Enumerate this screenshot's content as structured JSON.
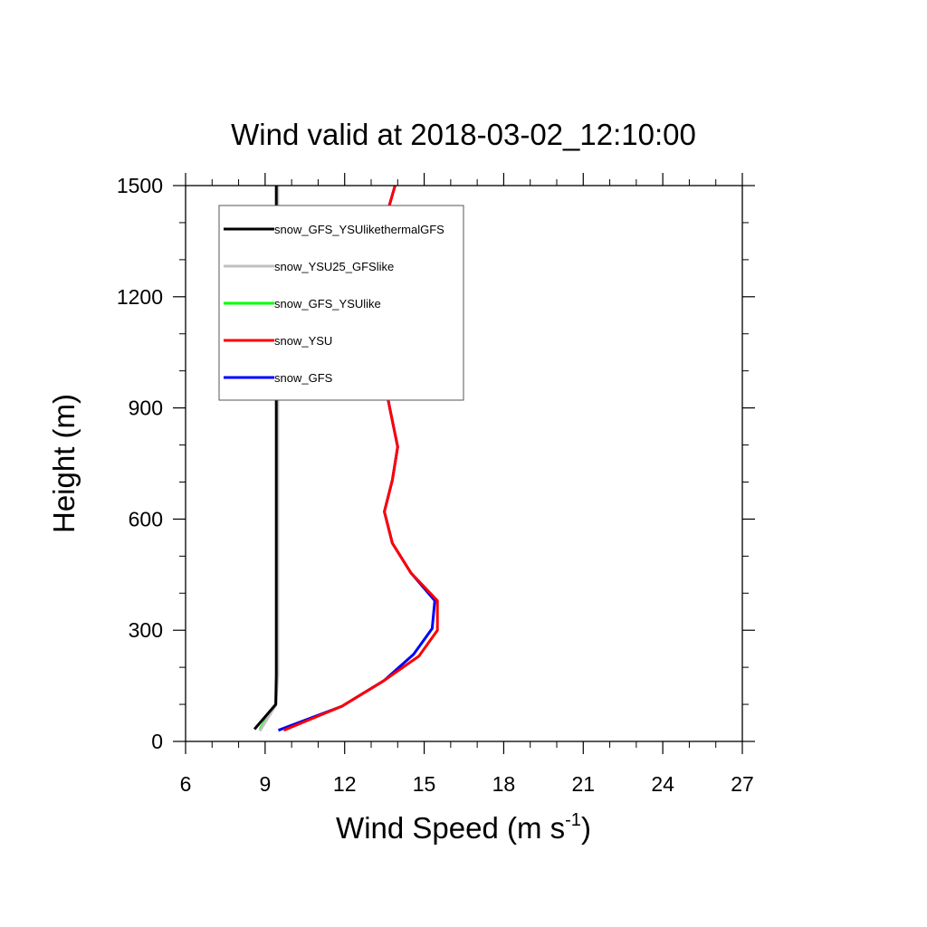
{
  "chart_data": {
    "type": "line",
    "title": "Wind valid at 2018-03-02_12:10:00",
    "xlabel": "Wind Speed (m s",
    "xlabel_sup": "-1",
    "xlabel_close": ")",
    "ylabel": "Height (m)",
    "xlim": [
      6,
      27
    ],
    "ylim": [
      0,
      1500
    ],
    "xticks": [
      6,
      9,
      12,
      15,
      18,
      21,
      24,
      27
    ],
    "yticks": [
      0,
      300,
      600,
      900,
      1200,
      1500
    ],
    "xtick_labels": [
      "6",
      "9",
      "12",
      "15",
      "18",
      "21",
      "24",
      "27"
    ],
    "ytick_labels": [
      "0",
      "300",
      "600",
      "900",
      "1200",
      "1500"
    ],
    "grid": false,
    "legend_position": "top-left",
    "series": [
      {
        "name": "snow_GFS",
        "color": "#0000ff",
        "points": [
          [
            9.5,
            30
          ],
          [
            11.9,
            95
          ],
          [
            13.5,
            165
          ],
          [
            14.6,
            235
          ],
          [
            15.3,
            305
          ],
          [
            15.4,
            380
          ],
          [
            14.5,
            455
          ],
          [
            13.8,
            535
          ],
          [
            13.5,
            620
          ],
          [
            13.8,
            705
          ],
          [
            14.0,
            795
          ],
          [
            13.7,
            900
          ],
          [
            13.0,
            1160
          ],
          [
            13.1,
            1300
          ],
          [
            13.5,
            1400
          ],
          [
            13.9,
            1500
          ]
        ]
      },
      {
        "name": "snow_YSU",
        "color": "#ff0000",
        "points": [
          [
            9.7,
            30
          ],
          [
            11.9,
            95
          ],
          [
            13.4,
            160
          ],
          [
            14.8,
            230
          ],
          [
            15.5,
            300
          ],
          [
            15.5,
            380
          ],
          [
            14.5,
            455
          ],
          [
            13.8,
            535
          ],
          [
            13.5,
            620
          ],
          [
            13.8,
            705
          ],
          [
            14.0,
            795
          ],
          [
            13.7,
            900
          ],
          [
            13.0,
            1160
          ],
          [
            13.1,
            1300
          ],
          [
            13.5,
            1400
          ],
          [
            13.9,
            1500
          ]
        ]
      },
      {
        "name": "snow_GFS_YSUlike",
        "color": "#00ff00",
        "points": [
          [
            8.8,
            33
          ],
          [
            9.4,
            100
          ],
          [
            9.45,
            180
          ],
          [
            9.45,
            600
          ],
          [
            9.45,
            1000
          ],
          [
            9.45,
            1500
          ]
        ]
      },
      {
        "name": "snow_YSU25_GFSlike",
        "color": "#c0c0c0",
        "points": [
          [
            8.8,
            28
          ],
          [
            9.4,
            98
          ],
          [
            9.48,
            180
          ],
          [
            9.48,
            600
          ],
          [
            9.48,
            1000
          ],
          [
            9.48,
            1500
          ]
        ]
      },
      {
        "name": "snow_GFS_YSUlikethermalGFS",
        "color": "#000000",
        "points": [
          [
            8.6,
            33
          ],
          [
            9.4,
            100
          ],
          [
            9.42,
            180
          ],
          [
            9.42,
            600
          ],
          [
            9.42,
            1000
          ],
          [
            9.42,
            1500
          ]
        ]
      }
    ],
    "legend_order": [
      "snow_GFS_YSUlikethermalGFS",
      "snow_YSU25_GFSlike",
      "snow_GFS_YSUlike",
      "snow_YSU",
      "snow_GFS"
    ]
  }
}
